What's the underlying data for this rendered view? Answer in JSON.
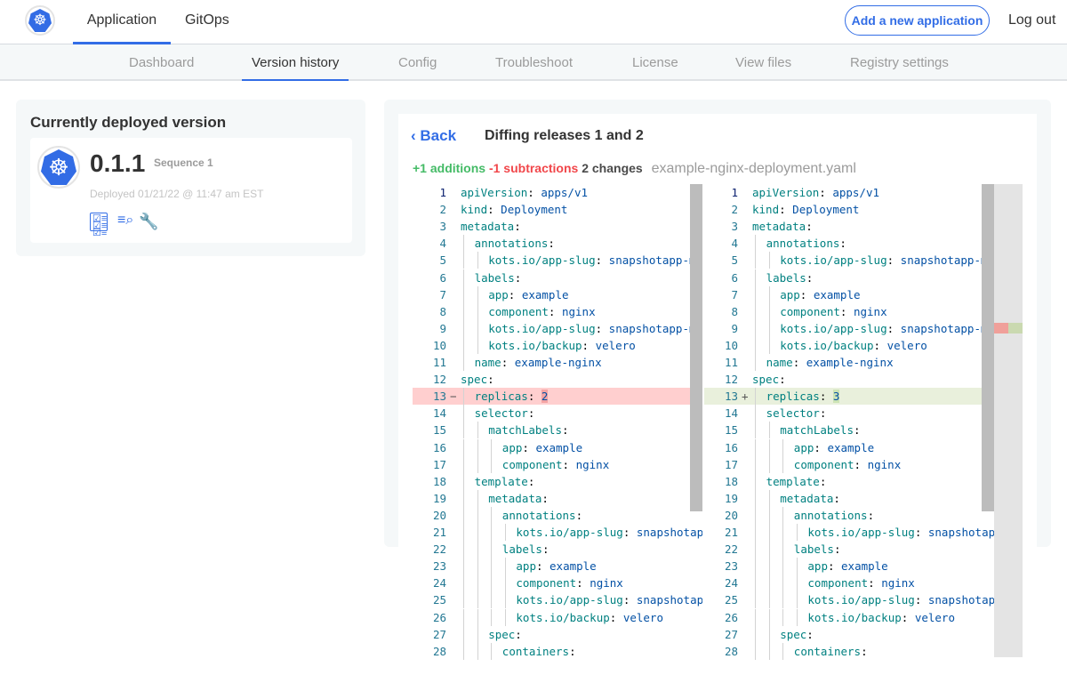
{
  "topbar": {
    "tabs": [
      "Application",
      "GitOps"
    ],
    "active": "Application",
    "add_button": "Add a new application",
    "logout": "Log out",
    "logo_icon": "kubernetes-helm-icon"
  },
  "subnav": {
    "tabs": [
      "Dashboard",
      "Version history",
      "Config",
      "Troubleshoot",
      "License",
      "View files",
      "Registry settings"
    ],
    "active": "Version history"
  },
  "deployed": {
    "title": "Currently deployed version",
    "version": "0.1.1",
    "sequence": "Sequence 1",
    "deployed_at": "Deployed 01/21/22 @ 11:47 am EST",
    "icons": [
      "checklist-icon",
      "logs-search-icon",
      "config-wrench-icon"
    ]
  },
  "diff": {
    "back": "Back",
    "title": "Diffing releases 1 and 2",
    "additions": "+1 additions",
    "subtractions": "-1 subtractions",
    "changes": "2 changes",
    "filename": "example-nginx-deployment.yaml",
    "colors": {
      "addition": "#44bb66",
      "subtraction": "#f1464a",
      "accent": "#326de6"
    },
    "changed_line": 13,
    "left": {
      "lines": [
        [
          0,
          "apiVersion",
          "apps/v1"
        ],
        [
          0,
          "kind",
          "Deployment"
        ],
        [
          0,
          "metadata",
          ""
        ],
        [
          1,
          "annotations",
          ""
        ],
        [
          2,
          "kots.io/app-slug",
          "snapshotapp-mu"
        ],
        [
          1,
          "labels",
          ""
        ],
        [
          2,
          "app",
          "example"
        ],
        [
          2,
          "component",
          "nginx"
        ],
        [
          2,
          "kots.io/app-slug",
          "snapshotapp-mu"
        ],
        [
          2,
          "kots.io/backup",
          "velero"
        ],
        [
          1,
          "name",
          "example-nginx"
        ],
        [
          0,
          "spec",
          ""
        ],
        [
          1,
          "replicas",
          "2"
        ],
        [
          1,
          "selector",
          ""
        ],
        [
          2,
          "matchLabels",
          ""
        ],
        [
          3,
          "app",
          "example"
        ],
        [
          3,
          "component",
          "nginx"
        ],
        [
          1,
          "template",
          ""
        ],
        [
          2,
          "metadata",
          ""
        ],
        [
          3,
          "annotations",
          ""
        ],
        [
          4,
          "kots.io/app-slug",
          "snapshotap"
        ],
        [
          3,
          "labels",
          ""
        ],
        [
          4,
          "app",
          "example"
        ],
        [
          4,
          "component",
          "nginx"
        ],
        [
          4,
          "kots.io/app-slug",
          "snapshotap"
        ],
        [
          4,
          "kots.io/backup",
          "velero"
        ],
        [
          2,
          "spec",
          ""
        ],
        [
          3,
          "containers",
          ""
        ]
      ]
    },
    "right": {
      "lines": [
        [
          0,
          "apiVersion",
          "apps/v1"
        ],
        [
          0,
          "kind",
          "Deployment"
        ],
        [
          0,
          "metadata",
          ""
        ],
        [
          1,
          "annotations",
          ""
        ],
        [
          2,
          "kots.io/app-slug",
          "snapshotapp-mu"
        ],
        [
          1,
          "labels",
          ""
        ],
        [
          2,
          "app",
          "example"
        ],
        [
          2,
          "component",
          "nginx"
        ],
        [
          2,
          "kots.io/app-slug",
          "snapshotapp-mu"
        ],
        [
          2,
          "kots.io/backup",
          "velero"
        ],
        [
          1,
          "name",
          "example-nginx"
        ],
        [
          0,
          "spec",
          ""
        ],
        [
          1,
          "replicas",
          "3"
        ],
        [
          1,
          "selector",
          ""
        ],
        [
          2,
          "matchLabels",
          ""
        ],
        [
          3,
          "app",
          "example"
        ],
        [
          3,
          "component",
          "nginx"
        ],
        [
          1,
          "template",
          ""
        ],
        [
          2,
          "metadata",
          ""
        ],
        [
          3,
          "annotations",
          ""
        ],
        [
          4,
          "kots.io/app-slug",
          "snapshotap"
        ],
        [
          3,
          "labels",
          ""
        ],
        [
          4,
          "app",
          "example"
        ],
        [
          4,
          "component",
          "nginx"
        ],
        [
          4,
          "kots.io/app-slug",
          "snapshotap"
        ],
        [
          4,
          "kots.io/backup",
          "velero"
        ],
        [
          2,
          "spec",
          ""
        ],
        [
          3,
          "containers",
          ""
        ]
      ]
    }
  }
}
